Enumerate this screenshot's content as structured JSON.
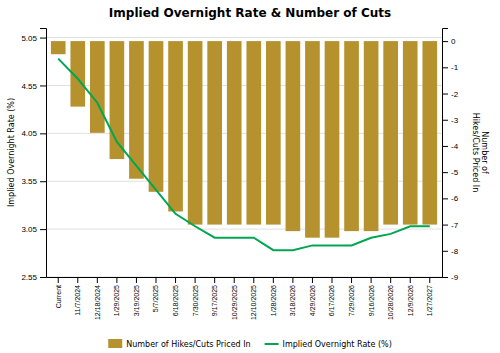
{
  "chart_data": {
    "type": "bar",
    "title": "Implied Overnight Rate & Number of Cuts",
    "categories": [
      "Current",
      "11/7/2024",
      "12/18/2024",
      "1/29/2025",
      "3/19/2025",
      "5/7/2025",
      "6/18/2025",
      "7/30/2025",
      "9/17/2025",
      "10/29/2025",
      "12/10/2025",
      "1/28/2026",
      "3/18/2026",
      "4/29/2026",
      "6/17/2026",
      "7/29/2026",
      "9/16/2026",
      "10/28/2026",
      "12/9/2026",
      "1/27/2027"
    ],
    "series": [
      {
        "name": "Number of Hikes/Cuts Priced In",
        "type": "bar",
        "axis": "y2",
        "color": "#b5922e",
        "values": [
          -0.5,
          -2.5,
          -3.5,
          -4.5,
          -5.25,
          -5.75,
          -6.5,
          -7.0,
          -7.0,
          -7.0,
          -7.0,
          -7.0,
          -7.25,
          -7.5,
          -7.5,
          -7.25,
          -7.25,
          -7.0,
          -7.0,
          -7.0
        ]
      },
      {
        "name": "Implied Overnight Rate (%)",
        "type": "line",
        "color": "#00a651",
        "values": [
          4.83,
          4.62,
          4.37,
          3.96,
          3.71,
          3.46,
          3.21,
          3.08,
          2.96,
          2.96,
          2.96,
          2.83,
          2.83,
          2.88,
          2.88,
          2.88,
          2.96,
          3.0,
          3.08,
          3.08
        ]
      }
    ],
    "ylabel": "Implied Overnight Rate (%)",
    "y2label": "Number of\nHikes/Cuts Priced In",
    "ylim": [
      2.55,
      5.15
    ],
    "yticks": [
      2.55,
      3.05,
      3.55,
      4.05,
      4.55,
      5.05
    ],
    "y2lim": [
      -9.0,
      0.5
    ],
    "y2ticks": [
      0.0,
      -1.0,
      -2.0,
      -3.0,
      -4.0,
      -5.0,
      -6.0,
      -7.0,
      -8.0,
      -9.0
    ],
    "grid": true,
    "legend": "bottom"
  }
}
